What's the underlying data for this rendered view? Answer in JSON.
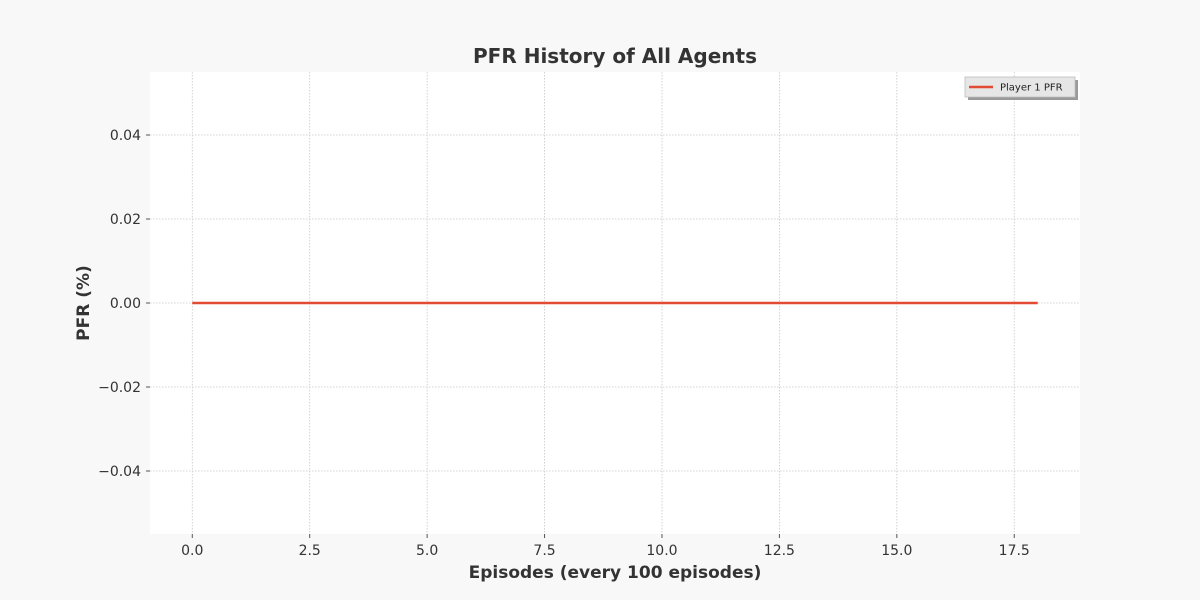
{
  "chart_data": {
    "type": "line",
    "title": "PFR History of All Agents",
    "xlabel": "Episodes (every 100 episodes)",
    "ylabel": "PFR (%)",
    "xlim": [
      -0.9,
      18.9
    ],
    "ylim": [
      -0.055,
      0.055
    ],
    "xticks": [
      0.0,
      2.5,
      5.0,
      7.5,
      10.0,
      12.5,
      15.0,
      17.5
    ],
    "xtick_labels": [
      "0.0",
      "2.5",
      "5.0",
      "7.5",
      "10.0",
      "12.5",
      "15.0",
      "17.5"
    ],
    "yticks": [
      0.04,
      0.02,
      0.0,
      -0.02,
      -0.04
    ],
    "ytick_labels": [
      "0.04",
      "0.02",
      "0.00",
      "−0.02",
      "−0.04"
    ],
    "grid": true,
    "legend_position": "top-right",
    "x": [
      0,
      1,
      2,
      3,
      4,
      5,
      6,
      7,
      8,
      9,
      10,
      11,
      12,
      13,
      14,
      15,
      16,
      17,
      18
    ],
    "series": [
      {
        "name": "Player 1 PFR",
        "color": "#e24a33",
        "values": [
          0,
          0,
          0,
          0,
          0,
          0,
          0,
          0,
          0,
          0,
          0,
          0,
          0,
          0,
          0,
          0,
          0,
          0,
          0
        ]
      }
    ]
  },
  "colors": {
    "page_background": "#f8f8f8",
    "plot_background": "#ffffff",
    "text": "#333333"
  }
}
